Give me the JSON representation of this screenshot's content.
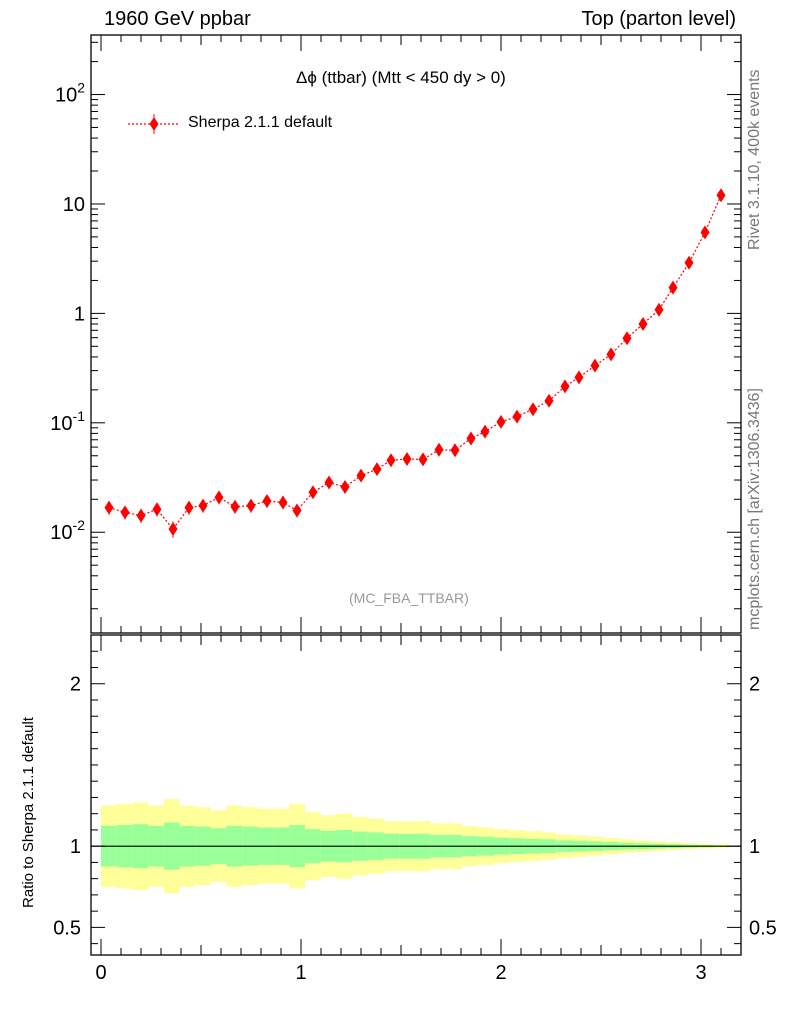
{
  "header": {
    "left": "1960 GeV ppbar",
    "right": "Top (parton level)"
  },
  "plot_title": "Δϕ (ttbar) (Mtt < 450 dy > 0)",
  "watermark": "(MC_FBA_TTBAR)",
  "side_labels": {
    "rivet": "Rivet 3.1.10,  400k events",
    "source": "mcplots.cern.ch [arXiv:1306.3436]"
  },
  "ratio_ylabel": "Ratio to Sherpa 2.1.1 default",
  "colors": {
    "series": "#ff0000",
    "band_inner": "#99ff99",
    "band_outer": "#ffff99",
    "ratio_line": "#000000"
  },
  "chart_data": [
    {
      "type": "scatter",
      "panel": "main",
      "yscale": "log",
      "xlim": [
        -0.05,
        3.2
      ],
      "ylim": [
        0.0012,
        350
      ],
      "grid": false,
      "legend_position": "top-left",
      "yticks": [
        {
          "value": 0.01,
          "label": "10^-2"
        },
        {
          "value": 0.1,
          "label": "10^-1"
        },
        {
          "value": 1,
          "label": "1"
        },
        {
          "value": 10,
          "label": "10"
        },
        {
          "value": 100,
          "label": "10^2"
        }
      ],
      "series": [
        {
          "name": "Sherpa 2.1.1 default",
          "marker": "diamond",
          "line": "dotted",
          "x": [
            0.04,
            0.12,
            0.2,
            0.28,
            0.36,
            0.44,
            0.51,
            0.59,
            0.67,
            0.75,
            0.83,
            0.91,
            0.98,
            1.06,
            1.14,
            1.22,
            1.3,
            1.38,
            1.45,
            1.53,
            1.61,
            1.69,
            1.77,
            1.85,
            1.92,
            2.0,
            2.08,
            2.16,
            2.24,
            2.32,
            2.39,
            2.47,
            2.55,
            2.63,
            2.71,
            2.79,
            2.86,
            2.94,
            3.02,
            3.1
          ],
          "y": [
            0.0168,
            0.0152,
            0.0142,
            0.0162,
            0.0107,
            0.0168,
            0.0175,
            0.0208,
            0.0171,
            0.0175,
            0.0193,
            0.0187,
            0.0158,
            0.0232,
            0.0285,
            0.0259,
            0.0329,
            0.0377,
            0.0455,
            0.0467,
            0.0463,
            0.0567,
            0.0561,
            0.0718,
            0.083,
            0.102,
            0.114,
            0.133,
            0.159,
            0.215,
            0.26,
            0.333,
            0.422,
            0.593,
            0.8,
            1.08,
            1.72,
            2.9,
            5.5,
            12.0
          ],
          "err": [
            0.0021,
            0.0019,
            0.0018,
            0.002,
            0.0016,
            0.002,
            0.0021,
            0.0024,
            0.002,
            0.0021,
            0.0022,
            0.0021,
            0.0019,
            0.0025,
            0.0028,
            0.0027,
            0.0031,
            0.0033,
            0.0037,
            0.0037,
            0.0036,
            0.0041,
            0.004,
            0.0046,
            0.005,
            0.0055,
            0.0058,
            0.0063,
            0.0068,
            0.008,
            0.0088,
            0.0099,
            0.011,
            0.013,
            0.015,
            0.018,
            0.022,
            0.03,
            0.042,
            0.062
          ]
        }
      ]
    },
    {
      "type": "area",
      "panel": "ratio",
      "ylabel": "Ratio to Sherpa 2.1.1 default",
      "xlim": [
        -0.05,
        3.2
      ],
      "ylim": [
        0.33,
        2.3
      ],
      "yticks": [
        {
          "value": 0.5,
          "label": "0.5"
        },
        {
          "value": 1,
          "label": "1"
        },
        {
          "value": 2,
          "label": "2"
        }
      ],
      "xticks": [
        {
          "value": 0,
          "label": "0"
        },
        {
          "value": 1,
          "label": "1"
        },
        {
          "value": 2,
          "label": "2"
        },
        {
          "value": 3,
          "label": "3"
        }
      ],
      "bin_edges": [
        0.0,
        0.0785,
        0.157,
        0.2355,
        0.314,
        0.3925,
        0.471,
        0.5495,
        0.628,
        0.7065,
        0.785,
        0.8635,
        0.942,
        1.0205,
        1.099,
        1.1775,
        1.256,
        1.3345,
        1.413,
        1.4915,
        1.57,
        1.6485,
        1.727,
        1.8055,
        1.884,
        1.9625,
        2.041,
        2.1195,
        2.198,
        2.2765,
        2.355,
        2.4335,
        2.512,
        2.5905,
        2.669,
        2.7475,
        2.826,
        2.9045,
        2.983,
        3.0615,
        3.14
      ],
      "band_inner_halfwidth": [
        0.125,
        0.13,
        0.135,
        0.125,
        0.145,
        0.125,
        0.12,
        0.11,
        0.125,
        0.12,
        0.115,
        0.115,
        0.13,
        0.105,
        0.095,
        0.1,
        0.09,
        0.085,
        0.077,
        0.076,
        0.077,
        0.07,
        0.07,
        0.062,
        0.058,
        0.052,
        0.049,
        0.046,
        0.042,
        0.036,
        0.033,
        0.029,
        0.025,
        0.021,
        0.018,
        0.015,
        0.012,
        0.009,
        0.007,
        0.005
      ],
      "band_outer_halfwidth": [
        0.25,
        0.26,
        0.27,
        0.25,
        0.29,
        0.25,
        0.24,
        0.22,
        0.25,
        0.24,
        0.23,
        0.23,
        0.26,
        0.21,
        0.19,
        0.2,
        0.18,
        0.17,
        0.154,
        0.152,
        0.154,
        0.14,
        0.14,
        0.124,
        0.116,
        0.104,
        0.098,
        0.092,
        0.084,
        0.072,
        0.066,
        0.058,
        0.05,
        0.042,
        0.036,
        0.03,
        0.024,
        0.018,
        0.014,
        0.01
      ],
      "ratio_line": 1.0
    }
  ]
}
